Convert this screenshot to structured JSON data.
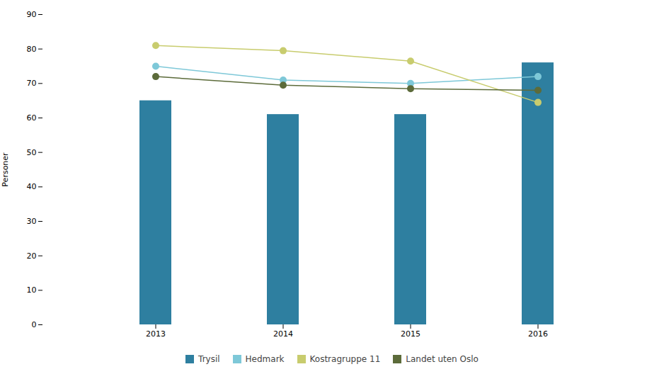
{
  "chart_data": {
    "type": "bar",
    "categories": [
      "2013",
      "2014",
      "2015",
      "2016"
    ],
    "ylabel": "Personer",
    "ylim": [
      0,
      90
    ],
    "yticks": [
      0,
      10,
      20,
      30,
      40,
      50,
      60,
      70,
      80,
      90
    ],
    "grid": false,
    "legend": "bottom",
    "series": [
      {
        "name": "Trysil",
        "type": "bar",
        "color": "#2e7fa0",
        "values": [
          65,
          61,
          61,
          76
        ]
      },
      {
        "name": "Hedmark",
        "type": "line",
        "marker": "circle",
        "color": "#7ec8d8",
        "values": [
          75,
          71,
          70,
          72
        ]
      },
      {
        "name": "Kostragruppe 11",
        "type": "line",
        "marker": "circle",
        "color": "#c8cc6e",
        "values": [
          81,
          79.5,
          76.5,
          64.5
        ]
      },
      {
        "name": "Landet uten Oslo",
        "type": "line",
        "marker": "circle",
        "color": "#5c6b3a",
        "values": [
          72,
          69.5,
          68.5,
          68
        ]
      }
    ]
  }
}
